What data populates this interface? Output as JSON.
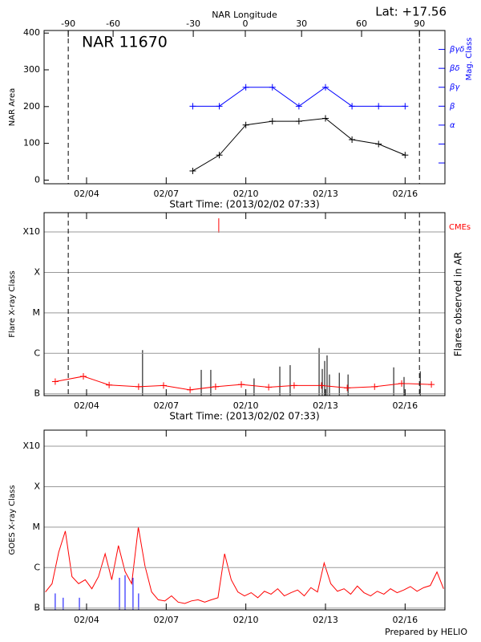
{
  "chart_data": [
    {
      "type": "line",
      "title": "NAR 11670",
      "subtitle": "Lat: +17.56",
      "x2label": "NAR Longitude",
      "xlabel": "Start Time: (2013/02/02 07:33)",
      "ylabel": "NAR Area",
      "y2label": "Mag. Class",
      "xlim": [
        2.4,
        17.5
      ],
      "xticks": [
        {
          "value": 4,
          "label": "02/04"
        },
        {
          "value": 7,
          "label": "02/07"
        },
        {
          "value": 10,
          "label": "02/10"
        },
        {
          "value": 13,
          "label": "02/13"
        },
        {
          "value": 16,
          "label": "02/16"
        }
      ],
      "x2ticks": [
        {
          "value": 3.31,
          "label": "-90"
        },
        {
          "value": 5.0,
          "label": "-60"
        },
        {
          "value": 8.02,
          "label": "-30"
        },
        {
          "value": 9.98,
          "label": "0"
        },
        {
          "value": 12.1,
          "label": "30"
        },
        {
          "value": 14.36,
          "label": "60"
        },
        {
          "value": 16.54,
          "label": "90"
        }
      ],
      "limbs": [
        3.31,
        16.54
      ],
      "ylim": [
        -10,
        407
      ],
      "yticks": [
        0,
        100,
        200,
        300,
        400
      ],
      "y2lim": [
        -0.1,
        8
      ],
      "y2ticks": [
        {
          "value": 3,
          "label": "α"
        },
        {
          "value": 4,
          "label": "β"
        },
        {
          "value": 5,
          "label": "βγ"
        },
        {
          "value": 6,
          "label": "βδ"
        },
        {
          "value": 7,
          "label": "βγδ"
        }
      ],
      "y2minor": [
        1,
        2
      ],
      "grid": false,
      "log": false,
      "series": [
        {
          "color": "#000000",
          "style": "plus-line",
          "x": [
            8,
            9,
            10,
            11,
            12,
            13,
            14,
            15,
            16
          ],
          "values": [
            25,
            68,
            150,
            160,
            160,
            168,
            110,
            98,
            68
          ]
        },
        {
          "color": "#0000ff",
          "style": "plus-line",
          "axis": "y2",
          "x": [
            8,
            9,
            10,
            11,
            12,
            13,
            14,
            15,
            16
          ],
          "values": [
            4,
            4,
            5,
            5,
            4,
            5,
            4,
            4,
            4
          ]
        }
      ]
    },
    {
      "type": "event",
      "xlabel": "Start Time: (2013/02/02 07:33)",
      "ylabel": "Flare X-ray Class",
      "y2label": "Flares observed in AR",
      "xlim": [
        2.4,
        17.5
      ],
      "xticks": [
        {
          "value": 4,
          "label": "02/04"
        },
        {
          "value": 7,
          "label": "02/07"
        },
        {
          "value": 10,
          "label": "02/10"
        },
        {
          "value": 13,
          "label": "02/13"
        },
        {
          "value": 16,
          "label": "02/16"
        }
      ],
      "limbs": [
        3.31,
        16.54
      ],
      "ylim": [
        9e-08,
        0.003
      ],
      "log": true,
      "grid": true,
      "yticks": [
        {
          "value": 1e-07,
          "label": "B"
        },
        {
          "value": 1e-06,
          "label": "C"
        },
        {
          "value": 1e-05,
          "label": "M"
        },
        {
          "value": 0.0001,
          "label": "X"
        },
        {
          "value": 0.001,
          "label": "X10"
        }
      ],
      "series": [
        {
          "color": "#000000",
          "style": "spikes",
          "x": [
            6.11,
            8.32,
            8.68,
            10.31,
            11.28,
            11.67,
            12.76,
            12.88,
            12.97,
            13.06,
            13.15,
            13.52,
            13.85,
            15.57,
            15.96,
            16.57
          ],
          "values": [
            1.2e-06,
            3.9e-07,
            3.9e-07,
            2.4e-07,
            4.7e-07,
            5.1e-07,
            1.35e-06,
            4.1e-07,
            6.5e-07,
            8.9e-07,
            3e-07,
            3.3e-07,
            3e-07,
            4.5e-07,
            2.6e-07,
            3.6e-07
          ]
        },
        {
          "color": "#ff0000",
          "style": "plus-line",
          "x": [
            2.82,
            3.88,
            4.85,
            5.96,
            6.9,
            7.9,
            8.86,
            9.83,
            10.86,
            11.82,
            12.85,
            13.82,
            14.85,
            15.87,
            16.99
          ],
          "values": [
            2e-07,
            2.7e-07,
            1.65e-07,
            1.5e-07,
            1.6e-07,
            1.25e-07,
            1.5e-07,
            1.7e-07,
            1.45e-07,
            1.6e-07,
            1.6e-07,
            1.4e-07,
            1.5e-07,
            1.8e-07,
            1.7e-07
          ]
        },
        {
          "name": "CMEs",
          "color": "#ff0000",
          "style": "event",
          "x": [
            8.98
          ]
        }
      ]
    },
    {
      "type": "timeseries",
      "ylabel": "GOES X-ray Class",
      "footer": "Prepared by HELIO",
      "xlim": [
        2.4,
        17.5
      ],
      "xticks": [
        {
          "value": 4,
          "label": "02/04"
        },
        {
          "value": 7,
          "label": "02/07"
        },
        {
          "value": 10,
          "label": "02/10"
        },
        {
          "value": 13,
          "label": "02/13"
        },
        {
          "value": 16,
          "label": "02/16"
        }
      ],
      "ylim": [
        9e-08,
        0.0025
      ],
      "log": true,
      "grid": true,
      "yticks": [
        {
          "value": 1e-07,
          "label": "B"
        },
        {
          "value": 1e-06,
          "label": "C"
        },
        {
          "value": 1e-05,
          "label": "M"
        },
        {
          "value": 0.0001,
          "label": "X"
        },
        {
          "value": 0.001,
          "label": "X10"
        }
      ],
      "series": [
        {
          "color": "#ff0000",
          "style": "line",
          "x": [
            2.45,
            2.7,
            2.95,
            3.2,
            3.45,
            3.7,
            3.95,
            4.2,
            4.45,
            4.7,
            4.95,
            5.2,
            5.45,
            5.7,
            5.95,
            6.2,
            6.45,
            6.7,
            6.95,
            7.2,
            7.45,
            7.7,
            7.95,
            8.2,
            8.45,
            8.7,
            8.95,
            9.2,
            9.45,
            9.7,
            9.95,
            10.2,
            10.45,
            10.7,
            10.95,
            11.2,
            11.45,
            11.7,
            11.95,
            12.2,
            12.45,
            12.7,
            12.95,
            13.2,
            13.45,
            13.7,
            13.95,
            14.2,
            14.45,
            14.7,
            14.95,
            15.2,
            15.45,
            15.7,
            15.95,
            16.2,
            16.45,
            16.7,
            16.95,
            17.2,
            17.45
          ],
          "values": [
            2.5e-07,
            4e-07,
            2.4e-06,
            8e-06,
            6e-07,
            4e-07,
            5e-07,
            3e-07,
            6e-07,
            2.2e-06,
            5e-07,
            3.5e-06,
            8e-07,
            4e-07,
            1e-05,
            1.1e-06,
            2.5e-07,
            1.6e-07,
            1.5e-07,
            2e-07,
            1.4e-07,
            1.3e-07,
            1.5e-07,
            1.6e-07,
            1.4e-07,
            1.6e-07,
            1.8e-07,
            2.2e-06,
            5e-07,
            2.5e-07,
            2e-07,
            2.4e-07,
            1.8e-07,
            2.6e-07,
            2.2e-07,
            3e-07,
            2e-07,
            2.4e-07,
            2.8e-07,
            2e-07,
            3.2e-07,
            2.5e-07,
            1.3e-06,
            4e-07,
            2.6e-07,
            3e-07,
            2.2e-07,
            3.5e-07,
            2.4e-07,
            2e-07,
            2.6e-07,
            2.2e-07,
            3e-07,
            2.4e-07,
            2.8e-07,
            3.4e-07,
            2.6e-07,
            3.2e-07,
            3.6e-07,
            7.8e-07,
            3e-07
          ]
        },
        {
          "color": "#0000ff",
          "style": "spikes",
          "x": [
            2.82,
            3.12,
            3.73,
            5.24,
            5.45,
            5.75,
            5.96
          ],
          "values": [
            2.3e-07,
            1.8e-07,
            1.8e-07,
            5.6e-07,
            6.5e-07,
            5.6e-07,
            2.3e-07
          ]
        }
      ]
    }
  ]
}
